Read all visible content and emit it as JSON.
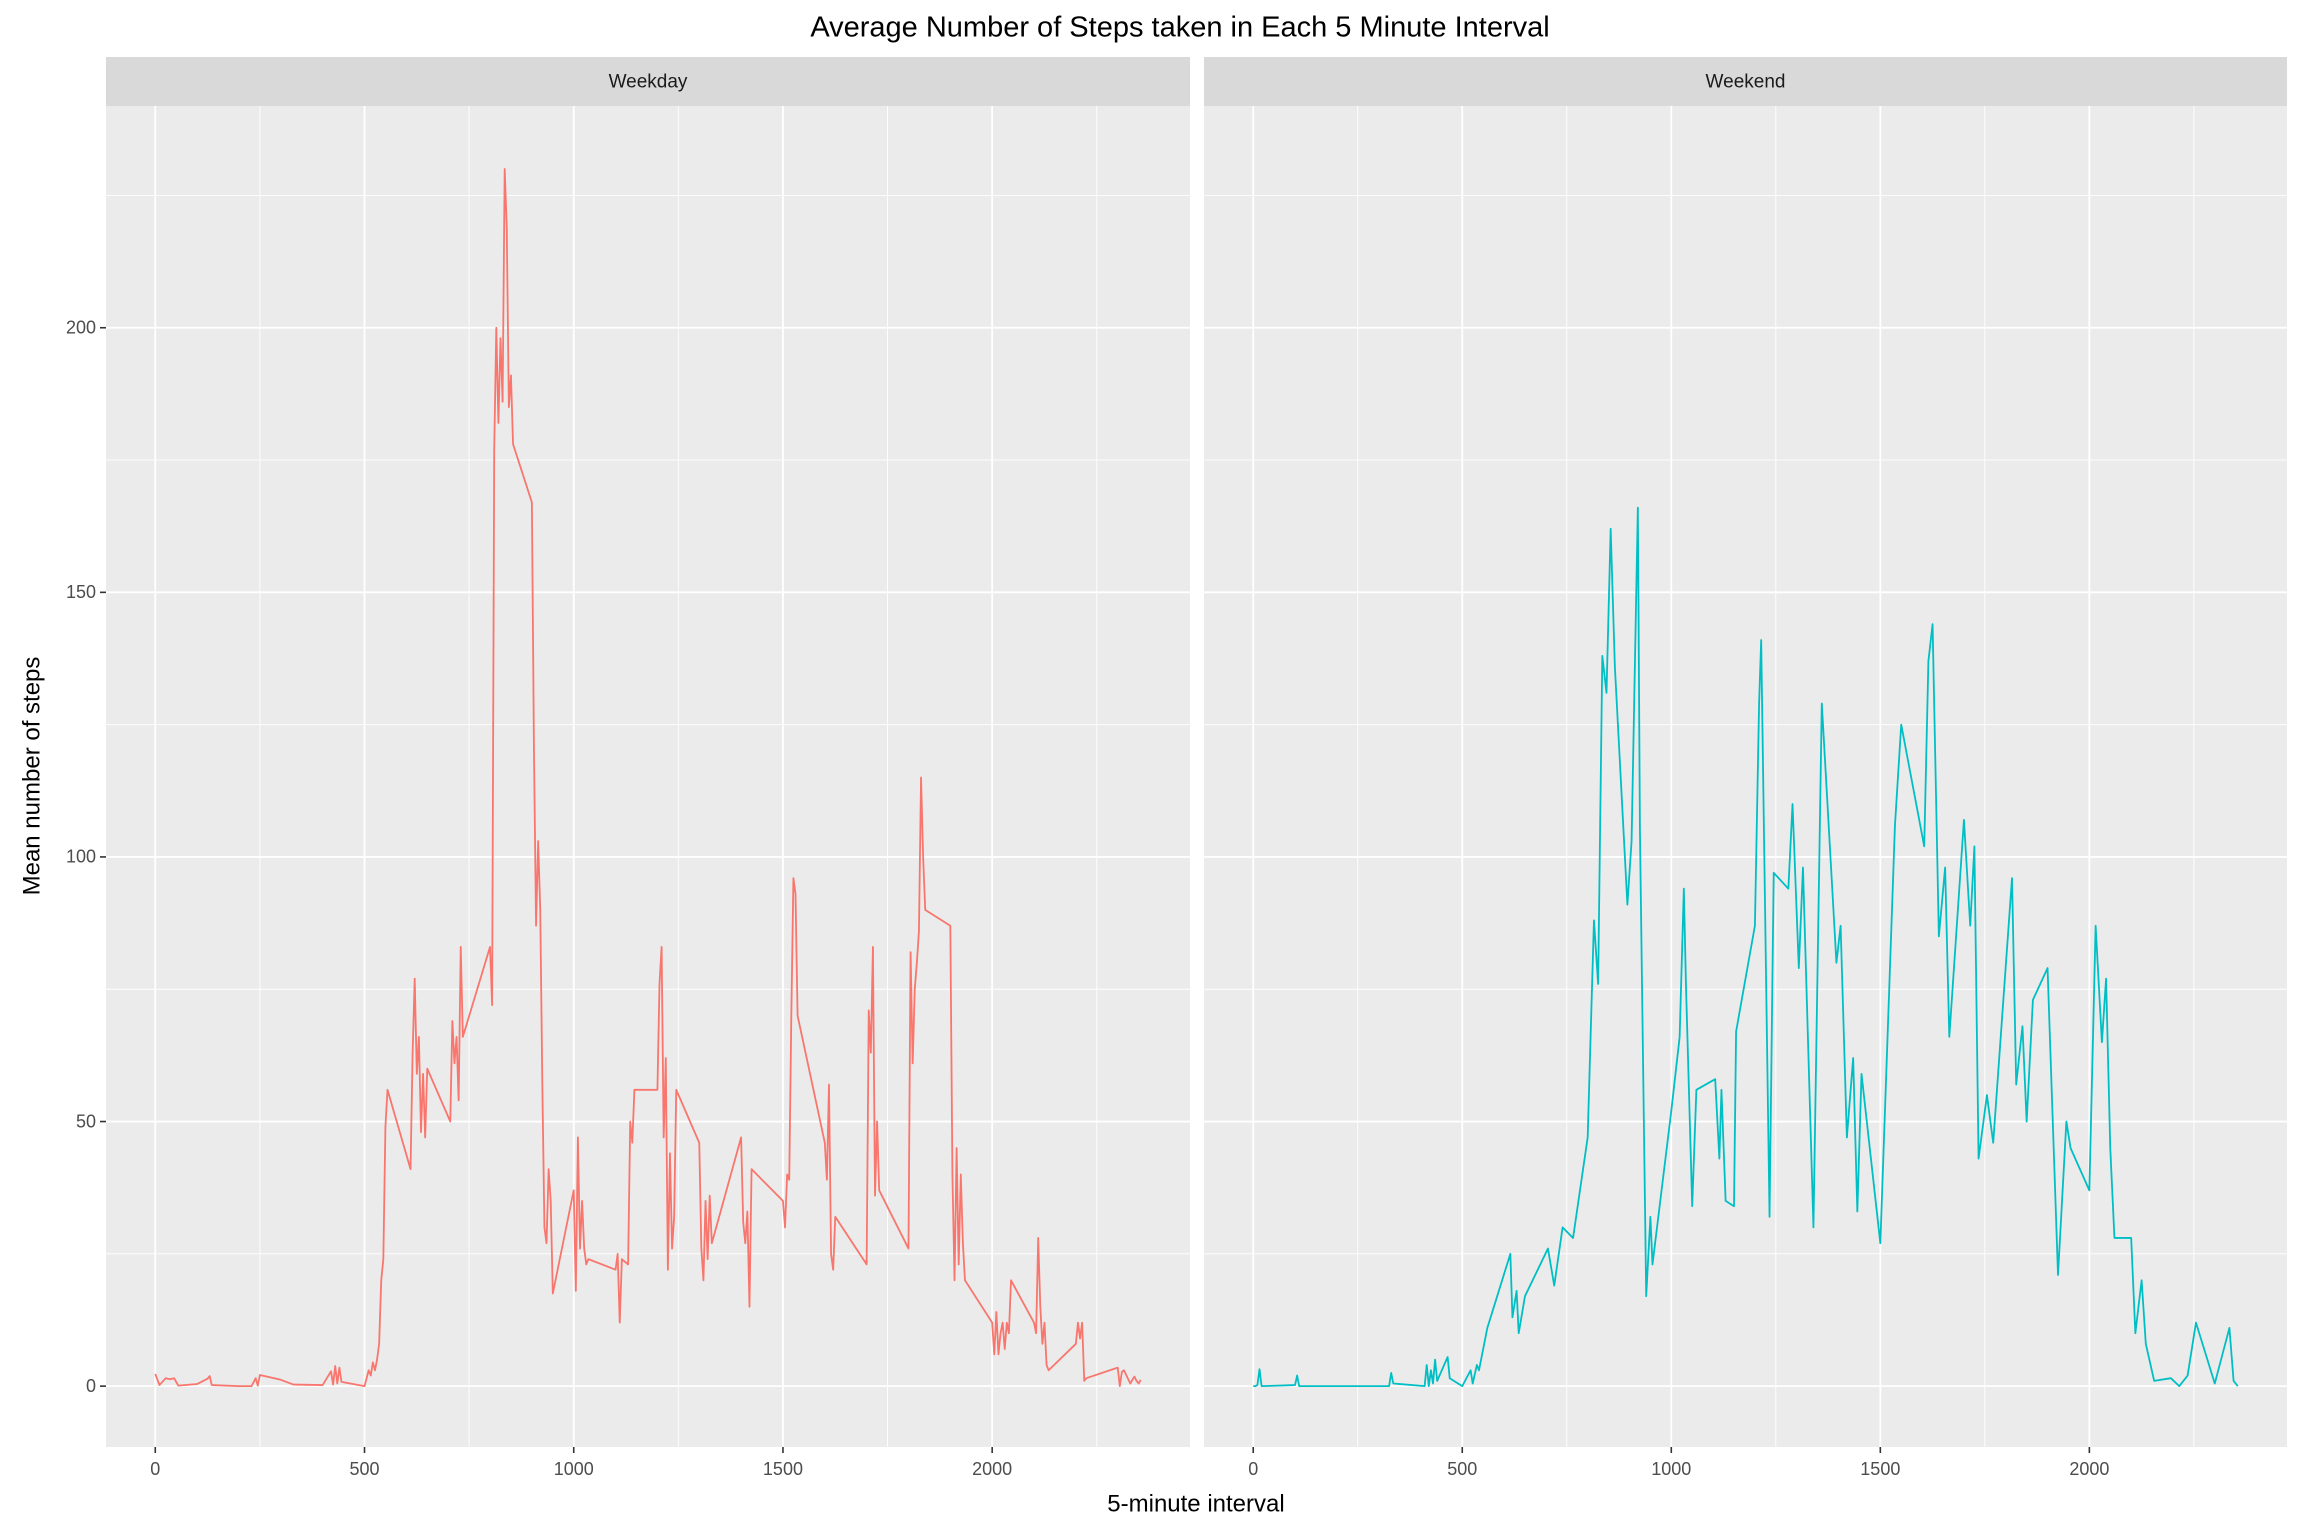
{
  "chart_data": {
    "type": "line",
    "title": "Average Number of Steps taken in Each 5 Minute Interval",
    "x_label": "5-minute interval",
    "y_label": "Mean number of steps",
    "xlim": [
      -117.75,
      2472.75
    ],
    "xticks": [
      0,
      500,
      1000,
      1500,
      2000
    ],
    "xminor": [
      250,
      750,
      1250,
      1750,
      2250
    ],
    "ylim": [
      -11.5,
      241.9
    ],
    "yticks": [
      0,
      50,
      100,
      150,
      200
    ],
    "yminor": [
      25,
      75,
      125,
      175,
      225
    ],
    "grid": true,
    "facets": true,
    "series": [
      {
        "name": "Weekday",
        "color": "#F8766D",
        "x": [
          0,
          10,
          25,
          35,
          45,
          55,
          100,
          125,
          130,
          135,
          200,
          230,
          240,
          245,
          250,
          300,
          330,
          400,
          420,
          425,
          430,
          435,
          440,
          445,
          500,
          510,
          515,
          520,
          525,
          530,
          535,
          540,
          545,
          550,
          555,
          610,
          615,
          620,
          625,
          630,
          635,
          640,
          645,
          650,
          705,
          710,
          715,
          720,
          725,
          730,
          735,
          800,
          805,
          810,
          815,
          820,
          825,
          830,
          835,
          840,
          845,
          850,
          855,
          900,
          905,
          910,
          915,
          920,
          925,
          930,
          935,
          940,
          945,
          950,
          1000,
          1005,
          1010,
          1015,
          1020,
          1025,
          1030,
          1035,
          1100,
          1105,
          1110,
          1115,
          1130,
          1135,
          1140,
          1145,
          1200,
          1205,
          1210,
          1215,
          1220,
          1225,
          1230,
          1235,
          1240,
          1245,
          1300,
          1305,
          1310,
          1315,
          1320,
          1325,
          1330,
          1400,
          1405,
          1410,
          1415,
          1420,
          1425,
          1500,
          1505,
          1510,
          1515,
          1520,
          1525,
          1530,
          1535,
          1600,
          1605,
          1610,
          1615,
          1620,
          1625,
          1700,
          1705,
          1710,
          1715,
          1720,
          1725,
          1730,
          1800,
          1805,
          1810,
          1815,
          1820,
          1825,
          1830,
          1835,
          1840,
          1900,
          1905,
          1910,
          1915,
          1920,
          1925,
          1930,
          1935,
          2000,
          2005,
          2010,
          2015,
          2020,
          2025,
          2030,
          2035,
          2040,
          2045,
          2100,
          2105,
          2110,
          2115,
          2120,
          2125,
          2130,
          2135,
          2200,
          2205,
          2210,
          2215,
          2220,
          2225,
          2300,
          2305,
          2310,
          2315,
          2330,
          2335,
          2340,
          2345,
          2350,
          2355
        ],
        "values": [
          2.3,
          0.2,
          1.5,
          1.3,
          1.5,
          0.1,
          0.4,
          1.4,
          1.9,
          0.2,
          0,
          0,
          1.5,
          0.1,
          2.1,
          1.2,
          0.3,
          0.2,
          2.8,
          0.3,
          3.8,
          0.5,
          3.5,
          0.8,
          0,
          3,
          2,
          4.5,
          3,
          5,
          8,
          20,
          24,
          49,
          56,
          41,
          63,
          77,
          59,
          66,
          48,
          59,
          47,
          60,
          50,
          69,
          61,
          66,
          54,
          83,
          66,
          83,
          72,
          177,
          200,
          182,
          198,
          186,
          230,
          219,
          185,
          191,
          178,
          167,
          120,
          87,
          103,
          90,
          57,
          30,
          27,
          41,
          35,
          17.5,
          37,
          18,
          47,
          26,
          35,
          26,
          23,
          24,
          22,
          25,
          12,
          24,
          23,
          50,
          46,
          56,
          56,
          76,
          83,
          47,
          62,
          22,
          44,
          26,
          32,
          56,
          46,
          26,
          20,
          35,
          24,
          36,
          27,
          47,
          31,
          27,
          33,
          15,
          41,
          35,
          30,
          40,
          39,
          70,
          96,
          93,
          70,
          46,
          39,
          57,
          25,
          22,
          32,
          23,
          71,
          63,
          83,
          36,
          50,
          37,
          26,
          82,
          61,
          75,
          80,
          86,
          115,
          100,
          90,
          87,
          40,
          20,
          45,
          23,
          40,
          27,
          20,
          12,
          6,
          14,
          6,
          10,
          12,
          7,
          12,
          10,
          20,
          12,
          10,
          28,
          15,
          8,
          12,
          4,
          3,
          8,
          12,
          9,
          12,
          1,
          1.5,
          3.5,
          0,
          2.7,
          3,
          0.5,
          1.2,
          1.8,
          1,
          0.5,
          1.2
        ]
      },
      {
        "name": "Weekend",
        "color": "#00BFC4",
        "x": [
          0,
          5,
          10,
          15,
          20,
          100,
          105,
          110,
          200,
          325,
          330,
          335,
          410,
          415,
          420,
          425,
          430,
          435,
          440,
          465,
          470,
          500,
          520,
          525,
          535,
          540,
          560,
          615,
          620,
          630,
          635,
          650,
          705,
          720,
          740,
          765,
          800,
          815,
          825,
          835,
          845,
          855,
          865,
          895,
          905,
          920,
          925,
          940,
          950,
          955,
          1000,
          1020,
          1030,
          1035,
          1050,
          1060,
          1105,
          1115,
          1120,
          1130,
          1150,
          1155,
          1200,
          1210,
          1215,
          1235,
          1245,
          1280,
          1290,
          1305,
          1315,
          1340,
          1360,
          1395,
          1405,
          1420,
          1435,
          1445,
          1455,
          1500,
          1535,
          1550,
          1605,
          1615,
          1625,
          1640,
          1655,
          1665,
          1700,
          1715,
          1725,
          1735,
          1755,
          1770,
          1815,
          1825,
          1840,
          1850,
          1865,
          1900,
          1925,
          1945,
          1955,
          2000,
          2015,
          2030,
          2040,
          2050,
          2060,
          2100,
          2110,
          2125,
          2135,
          2155,
          2195,
          2215,
          2235,
          2255,
          2300,
          2335,
          2345,
          2355
        ],
        "values": [
          0,
          0,
          0.2,
          3.2,
          0,
          0.2,
          2,
          0,
          0,
          0,
          2.5,
          0.5,
          0,
          4,
          0,
          3,
          0.5,
          5,
          1,
          5.5,
          1.5,
          0,
          3,
          0.5,
          4,
          3,
          11,
          25,
          13,
          18,
          10,
          17,
          26,
          19,
          30,
          28,
          47,
          88,
          76,
          138,
          131,
          162,
          136,
          91,
          103,
          166,
          105,
          17,
          32,
          23,
          52,
          66,
          94,
          76,
          34,
          56,
          58,
          43,
          56,
          35,
          34,
          67,
          87,
          129,
          141,
          32,
          97,
          94,
          110,
          79,
          98,
          30,
          129,
          80,
          87,
          47,
          62,
          33,
          59,
          27,
          106,
          125,
          102,
          137,
          144,
          85,
          98,
          66,
          107,
          87,
          102,
          43,
          55,
          46,
          96,
          57,
          68,
          50,
          73,
          79,
          21,
          50,
          45,
          37,
          87,
          65,
          77,
          45,
          28,
          28,
          10,
          20,
          8,
          1,
          1.5,
          0,
          2,
          12,
          0.5,
          11,
          1,
          0
        ]
      }
    ]
  }
}
